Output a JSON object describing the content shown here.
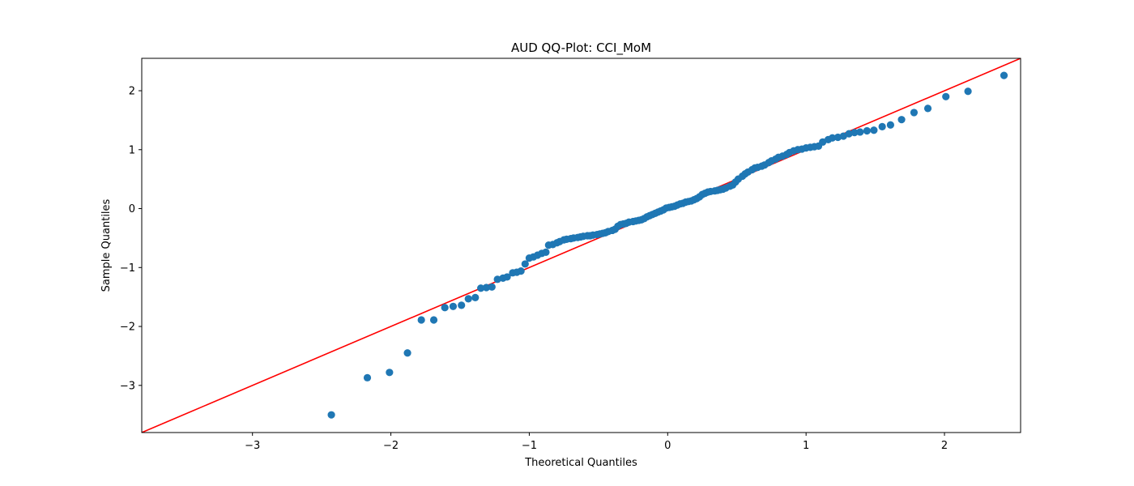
{
  "chart_data": {
    "type": "scatter",
    "title": "AUD QQ-Plot: CCI_MoM",
    "xlabel": "Theoretical Quantiles",
    "ylabel": "Sample Quantiles",
    "xlim": [
      -3.8,
      2.55
    ],
    "ylim": [
      -3.8,
      2.55
    ],
    "xticks": [
      -3,
      -2,
      -1,
      0,
      1,
      2
    ],
    "yticks": [
      -3,
      -2,
      -1,
      0,
      1,
      2
    ],
    "xtick_labels": [
      "−3",
      "−2",
      "−1",
      "0",
      "1",
      "2"
    ],
    "ytick_labels": [
      "−3",
      "−2",
      "−1",
      "0",
      "1",
      "2"
    ],
    "grid": false,
    "reference_line": {
      "slope": 1,
      "intercept": 0,
      "color": "#ff0000"
    },
    "marker_color": "#1f77b4",
    "points": [
      [
        -2.43,
        -3.5
      ],
      [
        -2.17,
        -2.87
      ],
      [
        -2.01,
        -2.78
      ],
      [
        -1.88,
        -2.45
      ],
      [
        -1.78,
        -1.89
      ],
      [
        -1.69,
        -1.89
      ],
      [
        -1.61,
        -1.68
      ],
      [
        -1.55,
        -1.66
      ],
      [
        -1.49,
        -1.64
      ],
      [
        -1.44,
        -1.53
      ],
      [
        -1.39,
        -1.51
      ],
      [
        -1.35,
        -1.35
      ],
      [
        -1.31,
        -1.34
      ],
      [
        -1.27,
        -1.33
      ],
      [
        -1.23,
        -1.2
      ],
      [
        -1.19,
        -1.18
      ],
      [
        -1.16,
        -1.16
      ],
      [
        -1.12,
        -1.09
      ],
      [
        -1.09,
        -1.08
      ],
      [
        -1.06,
        -1.06
      ],
      [
        -1.03,
        -0.94
      ],
      [
        -1.0,
        -0.84
      ],
      [
        -0.97,
        -0.82
      ],
      [
        -0.94,
        -0.79
      ],
      [
        -0.91,
        -0.76
      ],
      [
        -0.88,
        -0.74
      ],
      [
        -0.86,
        -0.62
      ],
      [
        -0.83,
        -0.61
      ],
      [
        -0.8,
        -0.58
      ],
      [
        -0.78,
        -0.56
      ],
      [
        -0.75,
        -0.53
      ],
      [
        -0.73,
        -0.52
      ],
      [
        -0.7,
        -0.51
      ],
      [
        -0.68,
        -0.5
      ],
      [
        -0.65,
        -0.49
      ],
      [
        -0.63,
        -0.48
      ],
      [
        -0.61,
        -0.47
      ],
      [
        -0.58,
        -0.46
      ],
      [
        -0.56,
        -0.46
      ],
      [
        -0.54,
        -0.45
      ],
      [
        -0.51,
        -0.44
      ],
      [
        -0.49,
        -0.43
      ],
      [
        -0.47,
        -0.42
      ],
      [
        -0.45,
        -0.41
      ],
      [
        -0.43,
        -0.39
      ],
      [
        -0.4,
        -0.37
      ],
      [
        -0.38,
        -0.35
      ],
      [
        -0.36,
        -0.3
      ],
      [
        -0.34,
        -0.27
      ],
      [
        -0.32,
        -0.26
      ],
      [
        -0.3,
        -0.25
      ],
      [
        -0.28,
        -0.23
      ],
      [
        -0.25,
        -0.22
      ],
      [
        -0.23,
        -0.21
      ],
      [
        -0.21,
        -0.2
      ],
      [
        -0.19,
        -0.19
      ],
      [
        -0.17,
        -0.17
      ],
      [
        -0.15,
        -0.14
      ],
      [
        -0.13,
        -0.12
      ],
      [
        -0.11,
        -0.1
      ],
      [
        -0.09,
        -0.08
      ],
      [
        -0.07,
        -0.06
      ],
      [
        -0.05,
        -0.04
      ],
      [
        -0.03,
        -0.02
      ],
      [
        -0.01,
        0.01
      ],
      [
        0.01,
        0.02
      ],
      [
        0.03,
        0.03
      ],
      [
        0.05,
        0.04
      ],
      [
        0.07,
        0.06
      ],
      [
        0.09,
        0.08
      ],
      [
        0.11,
        0.09
      ],
      [
        0.13,
        0.11
      ],
      [
        0.15,
        0.12
      ],
      [
        0.17,
        0.13
      ],
      [
        0.19,
        0.15
      ],
      [
        0.21,
        0.17
      ],
      [
        0.23,
        0.2
      ],
      [
        0.25,
        0.24
      ],
      [
        0.27,
        0.26
      ],
      [
        0.29,
        0.28
      ],
      [
        0.31,
        0.29
      ],
      [
        0.34,
        0.3
      ],
      [
        0.36,
        0.31
      ],
      [
        0.38,
        0.32
      ],
      [
        0.4,
        0.33
      ],
      [
        0.42,
        0.35
      ],
      [
        0.45,
        0.38
      ],
      [
        0.47,
        0.4
      ],
      [
        0.49,
        0.45
      ],
      [
        0.51,
        0.5
      ],
      [
        0.54,
        0.55
      ],
      [
        0.56,
        0.59
      ],
      [
        0.58,
        0.62
      ],
      [
        0.61,
        0.66
      ],
      [
        0.63,
        0.69
      ],
      [
        0.65,
        0.7
      ],
      [
        0.68,
        0.72
      ],
      [
        0.7,
        0.74
      ],
      [
        0.73,
        0.78
      ],
      [
        0.75,
        0.81
      ],
      [
        0.78,
        0.84
      ],
      [
        0.8,
        0.87
      ],
      [
        0.83,
        0.89
      ],
      [
        0.86,
        0.92
      ],
      [
        0.88,
        0.95
      ],
      [
        0.91,
        0.98
      ],
      [
        0.94,
        1.0
      ],
      [
        0.97,
        1.01
      ],
      [
        1.0,
        1.03
      ],
      [
        1.03,
        1.04
      ],
      [
        1.06,
        1.05
      ],
      [
        1.09,
        1.06
      ],
      [
        1.12,
        1.13
      ],
      [
        1.16,
        1.17
      ],
      [
        1.19,
        1.2
      ],
      [
        1.23,
        1.21
      ],
      [
        1.27,
        1.23
      ],
      [
        1.31,
        1.27
      ],
      [
        1.35,
        1.29
      ],
      [
        1.39,
        1.3
      ],
      [
        1.44,
        1.32
      ],
      [
        1.49,
        1.33
      ],
      [
        1.55,
        1.39
      ],
      [
        1.61,
        1.42
      ],
      [
        1.69,
        1.51
      ],
      [
        1.78,
        1.63
      ],
      [
        1.88,
        1.7
      ],
      [
        2.01,
        1.9
      ],
      [
        2.17,
        1.99
      ],
      [
        2.43,
        2.26
      ]
    ]
  }
}
